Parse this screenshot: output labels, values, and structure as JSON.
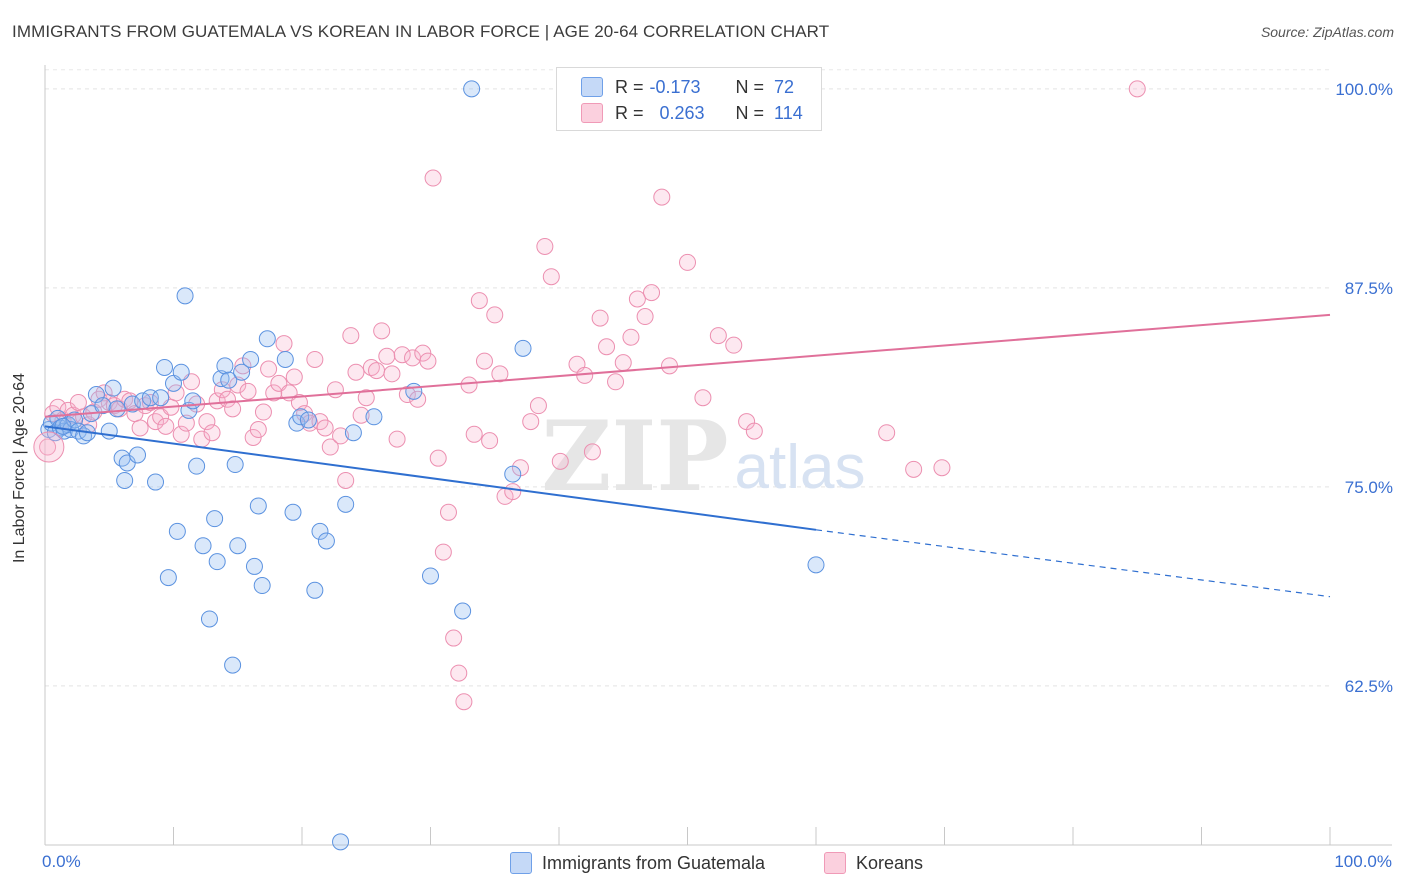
{
  "title": "IMMIGRANTS FROM GUATEMALA VS KOREAN IN LABOR FORCE | AGE 20-64 CORRELATION CHART",
  "source": "Source: ZipAtlas.com",
  "watermark": {
    "zip": "ZIP",
    "atlas": "atlas"
  },
  "legend": {
    "series1": {
      "r_label": "R =",
      "r_value": "-0.173",
      "n_label": "N =",
      "n_value": "72"
    },
    "series2": {
      "r_label": "R =",
      "r_value": "0.263",
      "n_label": "N =",
      "n_value": "114"
    }
  },
  "chart_data": {
    "type": "scatter",
    "title": "IMMIGRANTS FROM GUATEMALA VS KOREAN IN LABOR FORCE | AGE 20-64 CORRELATION CHART",
    "xlabel": "",
    "ylabel": "In Labor Force | Age 20-64",
    "xlim": [
      0,
      100
    ],
    "ylim": [
      52.5,
      101.5
    ],
    "x_tick_labels": [
      "0.0%",
      "100.0%"
    ],
    "y_ticks": [
      62.5,
      75.0,
      87.5,
      100.0
    ],
    "y_tick_labels": [
      "62.5%",
      "75.0%",
      "87.5%",
      "100.0%"
    ],
    "grid": true,
    "colors": {
      "series1": "#6fa0e8",
      "series2": "#f09ab7",
      "trend1": "#2f6fd0",
      "trend2": "#e0709a",
      "tick_text": "#3a6fd1"
    },
    "series": [
      {
        "name": "Immigrants from Guatemala",
        "trend": {
          "x0": 0,
          "y0": 78.8,
          "x1": 60,
          "y1": 72.3,
          "dash_to_x": 100,
          "dash_to_y": 68.1
        },
        "points": [
          [
            0.3,
            78.6
          ],
          [
            0.5,
            79.0
          ],
          [
            0.8,
            78.4
          ],
          [
            1.0,
            79.3
          ],
          [
            1.2,
            78.7
          ],
          [
            1.5,
            78.5
          ],
          [
            1.8,
            78.9
          ],
          [
            2.0,
            78.6
          ],
          [
            2.3,
            79.2
          ],
          [
            2.6,
            78.5
          ],
          [
            3.0,
            78.2
          ],
          [
            3.3,
            78.4
          ],
          [
            3.6,
            79.6
          ],
          [
            4.0,
            80.8
          ],
          [
            4.5,
            80.1
          ],
          [
            5.0,
            78.5
          ],
          [
            5.3,
            81.2
          ],
          [
            5.6,
            79.9
          ],
          [
            6.0,
            76.8
          ],
          [
            6.2,
            75.4
          ],
          [
            6.4,
            76.5
          ],
          [
            6.8,
            80.2
          ],
          [
            7.2,
            77.0
          ],
          [
            7.6,
            80.4
          ],
          [
            8.2,
            80.6
          ],
          [
            8.6,
            75.3
          ],
          [
            9.0,
            80.6
          ],
          [
            9.3,
            82.5
          ],
          [
            9.6,
            69.3
          ],
          [
            10.0,
            81.5
          ],
          [
            10.3,
            72.2
          ],
          [
            10.6,
            82.2
          ],
          [
            10.9,
            87.0
          ],
          [
            11.2,
            79.8
          ],
          [
            11.5,
            80.4
          ],
          [
            11.8,
            76.3
          ],
          [
            12.3,
            71.3
          ],
          [
            12.8,
            66.7
          ],
          [
            13.2,
            73.0
          ],
          [
            13.4,
            70.3
          ],
          [
            13.7,
            81.8
          ],
          [
            14.0,
            82.6
          ],
          [
            14.3,
            81.7
          ],
          [
            14.6,
            63.8
          ],
          [
            14.8,
            76.4
          ],
          [
            15.0,
            71.3
          ],
          [
            15.3,
            82.2
          ],
          [
            16.0,
            83.0
          ],
          [
            16.3,
            70.0
          ],
          [
            16.6,
            73.8
          ],
          [
            16.9,
            68.8
          ],
          [
            17.3,
            84.3
          ],
          [
            18.7,
            83.0
          ],
          [
            19.3,
            73.4
          ],
          [
            19.6,
            79.0
          ],
          [
            19.9,
            79.4
          ],
          [
            20.5,
            79.2
          ],
          [
            21.0,
            68.5
          ],
          [
            21.4,
            72.2
          ],
          [
            21.9,
            71.6
          ],
          [
            23.0,
            52.7
          ],
          [
            23.4,
            73.9
          ],
          [
            24.0,
            78.4
          ],
          [
            25.6,
            79.4
          ],
          [
            28.7,
            81.0
          ],
          [
            30.0,
            69.4
          ],
          [
            32.5,
            67.2
          ],
          [
            33.2,
            100.0
          ],
          [
            36.4,
            75.8
          ],
          [
            37.2,
            83.7
          ],
          [
            60.0,
            70.1
          ],
          [
            1.4,
            78.8
          ]
        ]
      },
      {
        "name": "Koreans",
        "trend": {
          "x0": 0,
          "y0": 79.4,
          "x1": 100,
          "y1": 85.8
        },
        "points": [
          [
            0.2,
            77.5
          ],
          [
            0.6,
            79.6
          ],
          [
            1.0,
            80.0
          ],
          [
            1.4,
            79.2
          ],
          [
            1.8,
            79.8
          ],
          [
            2.2,
            79.5
          ],
          [
            2.6,
            80.3
          ],
          [
            3.0,
            79.4
          ],
          [
            3.4,
            78.9
          ],
          [
            3.8,
            79.7
          ],
          [
            4.2,
            80.5
          ],
          [
            4.6,
            80.9
          ],
          [
            5.0,
            80.3
          ],
          [
            5.4,
            80.1
          ],
          [
            5.8,
            79.9
          ],
          [
            6.2,
            80.5
          ],
          [
            6.6,
            80.4
          ],
          [
            7.0,
            79.6
          ],
          [
            7.4,
            78.7
          ],
          [
            7.8,
            80.1
          ],
          [
            8.2,
            80.3
          ],
          [
            8.6,
            79.1
          ],
          [
            9.0,
            79.4
          ],
          [
            9.4,
            78.8
          ],
          [
            9.8,
            80.0
          ],
          [
            10.2,
            80.9
          ],
          [
            10.6,
            78.3
          ],
          [
            11.0,
            79.0
          ],
          [
            11.4,
            81.6
          ],
          [
            11.8,
            80.2
          ],
          [
            12.2,
            78.0
          ],
          [
            12.6,
            79.1
          ],
          [
            13.0,
            78.4
          ],
          [
            13.4,
            80.4
          ],
          [
            13.8,
            81.1
          ],
          [
            14.2,
            80.5
          ],
          [
            14.6,
            79.9
          ],
          [
            15.0,
            81.4
          ],
          [
            15.4,
            82.6
          ],
          [
            15.8,
            81.0
          ],
          [
            16.2,
            78.1
          ],
          [
            16.6,
            78.6
          ],
          [
            17.0,
            79.7
          ],
          [
            17.4,
            82.4
          ],
          [
            17.8,
            80.9
          ],
          [
            18.2,
            81.5
          ],
          [
            18.6,
            84.0
          ],
          [
            19.0,
            80.9
          ],
          [
            19.4,
            81.9
          ],
          [
            19.8,
            80.3
          ],
          [
            20.2,
            79.6
          ],
          [
            20.6,
            79.0
          ],
          [
            21.0,
            83.0
          ],
          [
            21.4,
            79.1
          ],
          [
            21.8,
            78.7
          ],
          [
            22.2,
            77.5
          ],
          [
            22.6,
            81.1
          ],
          [
            23.0,
            78.2
          ],
          [
            23.4,
            75.4
          ],
          [
            23.8,
            84.5
          ],
          [
            24.2,
            82.2
          ],
          [
            24.6,
            79.5
          ],
          [
            25.0,
            80.6
          ],
          [
            25.4,
            82.5
          ],
          [
            25.8,
            82.3
          ],
          [
            26.2,
            84.8
          ],
          [
            26.6,
            83.2
          ],
          [
            27.0,
            82.1
          ],
          [
            27.4,
            78.0
          ],
          [
            27.8,
            83.3
          ],
          [
            28.2,
            80.8
          ],
          [
            28.6,
            83.1
          ],
          [
            29.0,
            80.5
          ],
          [
            29.4,
            83.4
          ],
          [
            29.8,
            82.9
          ],
          [
            30.2,
            94.4
          ],
          [
            30.6,
            76.8
          ],
          [
            31.0,
            70.9
          ],
          [
            31.4,
            73.4
          ],
          [
            31.8,
            65.5
          ],
          [
            32.2,
            63.3
          ],
          [
            32.6,
            61.5
          ],
          [
            33.0,
            81.4
          ],
          [
            33.4,
            78.3
          ],
          [
            33.8,
            86.7
          ],
          [
            34.2,
            82.9
          ],
          [
            34.6,
            77.9
          ],
          [
            35.0,
            85.8
          ],
          [
            35.4,
            82.1
          ],
          [
            35.8,
            74.4
          ],
          [
            36.4,
            74.7
          ],
          [
            37.0,
            76.2
          ],
          [
            37.8,
            79.1
          ],
          [
            38.4,
            80.1
          ],
          [
            38.9,
            90.1
          ],
          [
            39.4,
            88.2
          ],
          [
            40.1,
            76.6
          ],
          [
            41.4,
            82.7
          ],
          [
            42.0,
            82.0
          ],
          [
            42.6,
            77.2
          ],
          [
            43.2,
            85.6
          ],
          [
            43.7,
            83.8
          ],
          [
            44.4,
            81.6
          ],
          [
            45.0,
            82.8
          ],
          [
            45.6,
            84.4
          ],
          [
            46.1,
            86.8
          ],
          [
            46.7,
            85.7
          ],
          [
            47.2,
            87.2
          ],
          [
            48.0,
            93.2
          ],
          [
            48.6,
            82.6
          ],
          [
            50.0,
            89.1
          ],
          [
            51.2,
            80.6
          ],
          [
            52.4,
            84.5
          ],
          [
            53.6,
            83.9
          ],
          [
            54.6,
            79.1
          ],
          [
            55.2,
            78.5
          ],
          [
            65.5,
            78.4
          ],
          [
            67.6,
            76.1
          ],
          [
            69.8,
            76.2
          ],
          [
            85.0,
            100.0
          ]
        ]
      }
    ]
  },
  "bottom_legend": {
    "series1": "Immigrants from Guatemala",
    "series2": "Koreans"
  }
}
